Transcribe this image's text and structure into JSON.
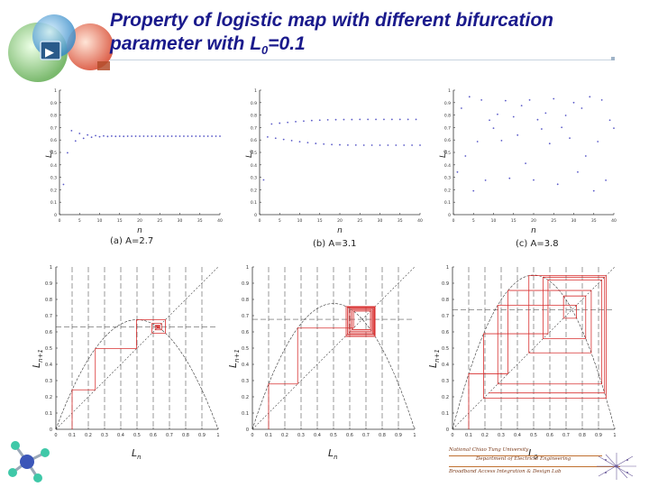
{
  "slide": {
    "title_line1": "Property of logistic map with different bifurcation",
    "title_line2_prefix": "parameter with L",
    "title_line2_sub": "0",
    "title_line2_suffix": "=0.1",
    "logo_play_glyph": "▶",
    "footer_line1": "National Chiao Tung University",
    "footer_line2": "Department of Electrical Engineering",
    "footer_line3": "Broadband Access Integration & Design Lab"
  },
  "chart_data": [
    {
      "type": "scatter",
      "name": "time-series-a",
      "caption": "(a) A=2.7",
      "A": 2.7,
      "L0": 0.1,
      "xlabel": "n",
      "ylabel": "L",
      "ylabel_sub": "n",
      "xlim": [
        0,
        40
      ],
      "ylim": [
        0,
        1
      ],
      "xticks": [
        0,
        5,
        10,
        15,
        20,
        25,
        30,
        35,
        40
      ],
      "yticks": [
        0,
        0.1,
        0.2,
        0.3,
        0.4,
        0.5,
        0.6,
        0.7,
        0.8,
        0.9,
        1
      ],
      "x": [
        1,
        2,
        3,
        4,
        5,
        6,
        7,
        8,
        9,
        10,
        11,
        12,
        13,
        14,
        15,
        16,
        17,
        18,
        19,
        20,
        21,
        22,
        23,
        24,
        25,
        26,
        27,
        28,
        29,
        30,
        31,
        32,
        33,
        34,
        35,
        36,
        37,
        38,
        39,
        40
      ],
      "values": [
        0.243,
        0.497,
        0.675,
        0.592,
        0.652,
        0.613,
        0.64,
        0.622,
        0.635,
        0.626,
        0.632,
        0.628,
        0.631,
        0.629,
        0.63,
        0.629,
        0.63,
        0.63,
        0.63,
        0.63,
        0.63,
        0.63,
        0.63,
        0.63,
        0.63,
        0.63,
        0.63,
        0.63,
        0.63,
        0.63,
        0.63,
        0.63,
        0.63,
        0.63,
        0.63,
        0.63,
        0.63,
        0.63,
        0.63,
        0.63
      ]
    },
    {
      "type": "scatter",
      "name": "time-series-b",
      "caption": "(b) A=3.1",
      "A": 3.1,
      "L0": 0.1,
      "xlabel": "n",
      "ylabel": "L",
      "ylabel_sub": "n",
      "xlim": [
        0,
        40
      ],
      "ylim": [
        0,
        1
      ],
      "xticks": [
        0,
        5,
        10,
        15,
        20,
        25,
        30,
        35,
        40
      ],
      "yticks": [
        0,
        0.1,
        0.2,
        0.3,
        0.4,
        0.5,
        0.6,
        0.7,
        0.8,
        0.9,
        1
      ],
      "x": [
        1,
        2,
        3,
        4,
        5,
        6,
        7,
        8,
        9,
        10,
        11,
        12,
        13,
        14,
        15,
        16,
        17,
        18,
        19,
        20,
        21,
        22,
        23,
        24,
        25,
        26,
        27,
        28,
        29,
        30,
        31,
        32,
        33,
        34,
        35,
        36,
        37,
        38,
        39,
        40
      ],
      "values": [
        0.279,
        0.624,
        0.728,
        0.614,
        0.735,
        0.604,
        0.741,
        0.595,
        0.747,
        0.586,
        0.752,
        0.579,
        0.756,
        0.572,
        0.759,
        0.567,
        0.762,
        0.563,
        0.763,
        0.561,
        0.764,
        0.559,
        0.764,
        0.559,
        0.765,
        0.558,
        0.765,
        0.558,
        0.765,
        0.558,
        0.765,
        0.558,
        0.765,
        0.558,
        0.765,
        0.558,
        0.765,
        0.558,
        0.765,
        0.558
      ]
    },
    {
      "type": "scatter",
      "name": "time-series-c",
      "caption": "(c) A=3.8",
      "A": 3.8,
      "L0": 0.1,
      "xlabel": "n",
      "ylabel": "L",
      "ylabel_sub": "n",
      "xlim": [
        0,
        40
      ],
      "ylim": [
        0,
        1
      ],
      "xticks": [
        0,
        5,
        10,
        15,
        20,
        25,
        30,
        35,
        40
      ],
      "yticks": [
        0,
        0.1,
        0.2,
        0.3,
        0.4,
        0.5,
        0.6,
        0.7,
        0.8,
        0.9,
        1
      ],
      "x": [
        1,
        2,
        3,
        4,
        5,
        6,
        7,
        8,
        9,
        10,
        11,
        12,
        13,
        14,
        15,
        16,
        17,
        18,
        19,
        20,
        21,
        22,
        23,
        24,
        25,
        26,
        27,
        28,
        29,
        30,
        31,
        32,
        33,
        34,
        35,
        36,
        37,
        38,
        39,
        40
      ],
      "values": [
        0.342,
        0.855,
        0.471,
        0.947,
        0.191,
        0.587,
        0.921,
        0.276,
        0.759,
        0.695,
        0.806,
        0.595,
        0.916,
        0.292,
        0.786,
        0.639,
        0.876,
        0.412,
        0.921,
        0.278,
        0.763,
        0.688,
        0.816,
        0.571,
        0.931,
        0.244,
        0.701,
        0.797,
        0.615,
        0.9,
        0.342,
        0.855,
        0.471,
        0.947,
        0.191,
        0.587,
        0.921,
        0.276,
        0.759,
        0.695
      ]
    },
    {
      "type": "line",
      "name": "cobweb-a",
      "A": 2.7,
      "L0": 0.1,
      "xlabel": "L",
      "xlabel_sub": "n",
      "ylabel": "L",
      "ylabel_sub": "n+1",
      "xlim": [
        0,
        1
      ],
      "ylim": [
        0,
        1
      ],
      "xticks": [
        0,
        0.1,
        0.2,
        0.3,
        0.4,
        0.5,
        0.6,
        0.7,
        0.8,
        0.9,
        1
      ],
      "yticks": [
        0,
        0.1,
        0.2,
        0.3,
        0.4,
        0.5,
        0.6,
        0.7,
        0.8,
        0.9,
        1
      ],
      "curve": "L(n+1) = A * L(n) * (1 - L(n))",
      "diagonal": "L(n+1) = L(n)",
      "iterations": 14
    },
    {
      "type": "line",
      "name": "cobweb-b",
      "A": 3.1,
      "L0": 0.1,
      "xlabel": "L",
      "xlabel_sub": "n",
      "ylabel": "L",
      "ylabel_sub": "n+1",
      "xlim": [
        0,
        1
      ],
      "ylim": [
        0,
        1
      ],
      "xticks": [
        0,
        0.1,
        0.2,
        0.3,
        0.4,
        0.5,
        0.6,
        0.7,
        0.8,
        0.9,
        1
      ],
      "yticks": [
        0,
        0.1,
        0.2,
        0.3,
        0.4,
        0.5,
        0.6,
        0.7,
        0.8,
        0.9,
        1
      ],
      "curve": "L(n+1) = A * L(n) * (1 - L(n))",
      "diagonal": "L(n+1) = L(n)",
      "iterations": 14
    },
    {
      "type": "line",
      "name": "cobweb-c",
      "A": 3.8,
      "L0": 0.1,
      "xlabel": "L",
      "xlabel_sub": "0",
      "ylabel": "L",
      "ylabel_sub": "n+1",
      "xlim": [
        0,
        1
      ],
      "ylim": [
        0,
        1
      ],
      "xticks": [
        0,
        0.1,
        0.2,
        0.3,
        0.4,
        0.5,
        0.6,
        0.7,
        0.8,
        0.9,
        1
      ],
      "yticks": [
        0,
        0.1,
        0.2,
        0.3,
        0.4,
        0.5,
        0.6,
        0.7,
        0.8,
        0.9,
        1
      ],
      "curve": "L(n+1) = A * L(n) * (1 - L(n))",
      "diagonal": "L(n+1) = L(n)",
      "iterations": 14
    }
  ]
}
